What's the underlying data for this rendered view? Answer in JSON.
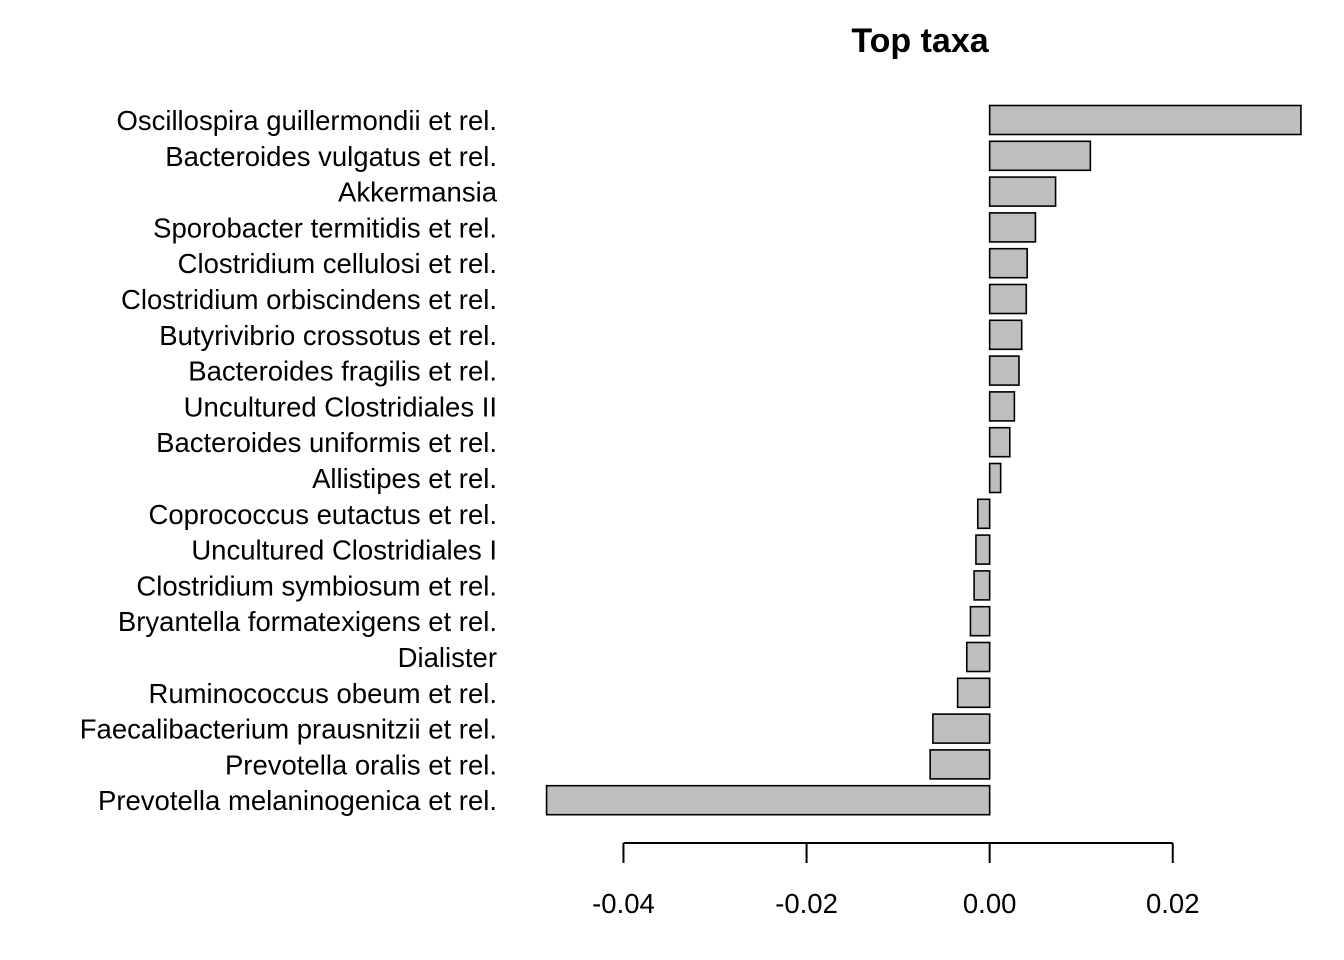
{
  "chart_data": {
    "type": "bar",
    "orientation": "horizontal",
    "title": "Top taxa",
    "xlabel": "",
    "ylabel": "",
    "xlim": [
      -0.0495,
      0.0345
    ],
    "xticks": [
      -0.04,
      -0.02,
      0.0,
      0.02
    ],
    "xtick_labels": [
      "-0.04",
      "-0.02",
      "0.00",
      "0.02"
    ],
    "bar_color": "#bebebe",
    "border_color": "#000000",
    "grid": false,
    "categories": [
      "Oscillospira guillermondii et rel.",
      "Bacteroides vulgatus et rel.",
      "Akkermansia",
      "Sporobacter termitidis et rel.",
      "Clostridium cellulosi et rel.",
      "Clostridium orbiscindens et rel.",
      "Butyrivibrio crossotus et rel.",
      "Bacteroides fragilis et rel.",
      "Uncultured Clostridiales II",
      "Bacteroides uniformis et rel.",
      "Allistipes et rel.",
      "Coprococcus eutactus et rel.",
      "Uncultured Clostridiales I",
      "Clostridium symbiosum et rel.",
      "Bryantella formatexigens et rel.",
      "Dialister",
      "Ruminococcus obeum et rel.",
      "Faecalibacterium prausnitzii et rel.",
      "Prevotella oralis et rel.",
      "Prevotella melaninogenica et rel."
    ],
    "values": [
      0.034,
      0.011,
      0.0072,
      0.005,
      0.0041,
      0.004,
      0.0035,
      0.0032,
      0.0027,
      0.0022,
      0.0012,
      -0.0013,
      -0.0015,
      -0.0017,
      -0.0021,
      -0.0025,
      -0.0035,
      -0.0062,
      -0.0065,
      -0.0484
    ]
  }
}
